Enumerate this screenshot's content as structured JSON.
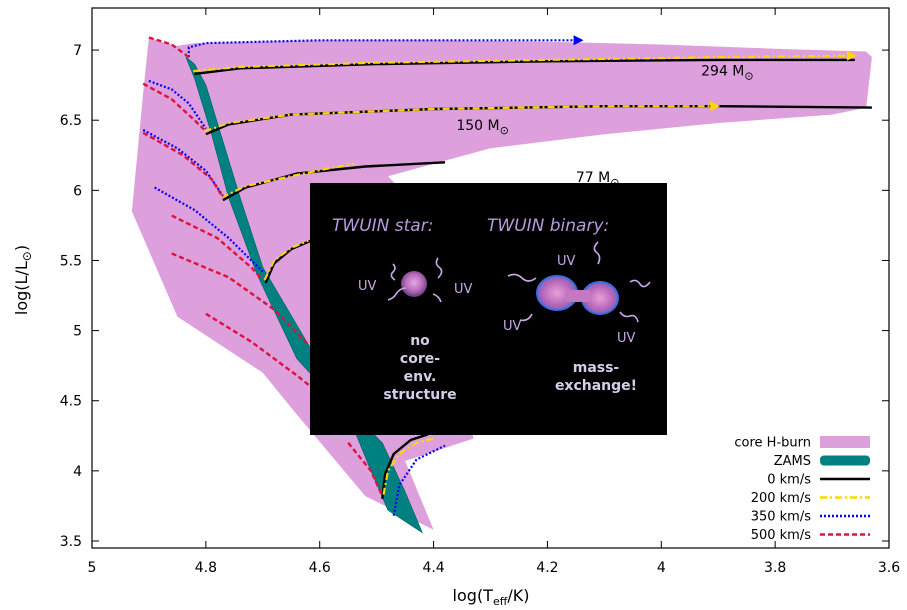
{
  "chart_data": {
    "type": "line",
    "xlabel": "log(T",
    "xlabel_sub": "eff",
    "xlabel_end": "/K)",
    "ylabel": "log(L/L",
    "ylabel_sym": "⊙",
    "ylabel_end": ")",
    "xlim": [
      5.0,
      3.6
    ],
    "ylim": [
      3.45,
      7.3
    ],
    "x_reversed": true,
    "xticks": [
      "5",
      "4.8",
      "4.6",
      "4.4",
      "4.2",
      "4",
      "3.8",
      "3.6"
    ],
    "yticks": [
      "3.5",
      "4",
      "4.5",
      "5",
      "5.5",
      "6",
      "6.5",
      "7"
    ],
    "grid": false,
    "legend_position": "bottom-right",
    "legend": [
      {
        "label": "core H-burn",
        "style": "fill",
        "color": "#dda0dd"
      },
      {
        "label": "ZAMS",
        "style": "band",
        "color": "#008080"
      },
      {
        "label": "0 km/s",
        "style": "solid",
        "color": "#000000"
      },
      {
        "label": "200 km/s",
        "style": "dashdot",
        "color": "#ffd700"
      },
      {
        "label": "350 km/s",
        "style": "dotted",
        "color": "#0000ff"
      },
      {
        "label": "500 km/s",
        "style": "dashed",
        "color": "#dc143c"
      }
    ],
    "mass_labels": [
      {
        "text": "294 M",
        "sym": "⊙",
        "x": 3.93,
        "y": 6.82
      },
      {
        "text": "150 M",
        "sym": "⊙",
        "x": 4.36,
        "y": 6.43
      },
      {
        "text": "77 M",
        "sym": "⊙",
        "x": 4.15,
        "y": 6.06
      }
    ],
    "core_h_burn_region": [
      [
        4.9,
        7.09
      ],
      [
        4.88,
        7.06
      ],
      [
        4.85,
        7.03
      ],
      [
        4.82,
        7.05
      ],
      [
        4.6,
        7.07
      ],
      [
        4.4,
        7.07
      ],
      [
        4.2,
        7.06
      ],
      [
        4.0,
        7.04
      ],
      [
        3.8,
        7.01
      ],
      [
        3.64,
        6.99
      ],
      [
        3.63,
        6.95
      ],
      [
        3.64,
        6.59
      ],
      [
        3.7,
        6.54
      ],
      [
        3.9,
        6.48
      ],
      [
        4.1,
        6.4
      ],
      [
        4.3,
        6.3
      ],
      [
        4.48,
        6.1
      ],
      [
        4.42,
        5.85
      ],
      [
        4.36,
        5.2
      ],
      [
        4.33,
        4.23
      ],
      [
        4.45,
        4.07
      ],
      [
        4.4,
        3.58
      ],
      [
        4.52,
        3.82
      ],
      [
        4.65,
        4.45
      ],
      [
        4.7,
        4.7
      ],
      [
        4.85,
        5.1
      ],
      [
        4.93,
        5.85
      ],
      [
        4.91,
        6.7
      ],
      [
        4.9,
        7.09
      ]
    ],
    "zams_band_left": [
      [
        4.835,
        6.95
      ],
      [
        4.82,
        6.8
      ],
      [
        4.79,
        6.4
      ],
      [
        4.76,
        5.95
      ],
      [
        4.71,
        5.4
      ],
      [
        4.64,
        4.8
      ],
      [
        4.55,
        4.4
      ],
      [
        4.51,
        4.0
      ],
      [
        4.48,
        3.72
      ]
    ],
    "zams_band_right": [
      [
        4.42,
        3.56
      ],
      [
        4.45,
        3.85
      ],
      [
        4.49,
        4.2
      ],
      [
        4.54,
        4.4
      ],
      [
        4.62,
        4.9
      ],
      [
        4.7,
        5.45
      ],
      [
        4.74,
        5.95
      ],
      [
        4.77,
        6.35
      ],
      [
        4.8,
        6.75
      ],
      [
        4.82,
        6.9
      ]
    ],
    "series": [
      {
        "name": "0 km/s",
        "color": "#000000",
        "dash": "",
        "width": 2.4,
        "tracks": [
          [
            [
              4.82,
              6.83
            ],
            [
              4.74,
              6.87
            ],
            [
              4.5,
              6.9
            ],
            [
              4.2,
              6.92
            ],
            [
              3.9,
              6.93
            ],
            [
              3.66,
              6.93
            ]
          ],
          [
            [
              4.8,
              6.4
            ],
            [
              4.76,
              6.47
            ],
            [
              4.65,
              6.54
            ],
            [
              4.4,
              6.58
            ],
            [
              4.1,
              6.6
            ],
            [
              3.9,
              6.6
            ],
            [
              3.63,
              6.59
            ]
          ],
          [
            [
              4.77,
              5.93
            ],
            [
              4.73,
              6.02
            ],
            [
              4.64,
              6.12
            ],
            [
              4.52,
              6.17
            ],
            [
              4.38,
              6.2
            ]
          ],
          [
            [
              4.695,
              5.34
            ],
            [
              4.68,
              5.48
            ],
            [
              4.65,
              5.58
            ],
            [
              4.61,
              5.65
            ]
          ],
          [
            [
              4.49,
              3.8
            ],
            [
              4.485,
              3.98
            ],
            [
              4.47,
              4.12
            ],
            [
              4.44,
              4.22
            ],
            [
              4.41,
              4.26
            ]
          ]
        ]
      },
      {
        "name": "200 km/s",
        "color": "#ffd700",
        "dash": "7,3,2,3",
        "width": 2.2,
        "tracks": [
          [
            [
              4.822,
              6.85
            ],
            [
              4.74,
              6.88
            ],
            [
              4.5,
              6.91
            ],
            [
              4.2,
              6.93
            ],
            [
              3.9,
              6.95
            ],
            [
              3.66,
              6.96
            ]
          ],
          [
            [
              4.802,
              6.42
            ],
            [
              4.76,
              6.48
            ],
            [
              4.65,
              6.54
            ],
            [
              4.4,
              6.58
            ],
            [
              4.1,
              6.6
            ],
            [
              3.9,
              6.6
            ]
          ],
          [
            [
              4.772,
              5.95
            ],
            [
              4.73,
              6.03
            ],
            [
              4.64,
              6.11
            ],
            [
              4.58,
              6.16
            ],
            [
              4.54,
              6.19
            ]
          ],
          [
            [
              4.697,
              5.36
            ],
            [
              4.68,
              5.5
            ],
            [
              4.65,
              5.59
            ],
            [
              4.62,
              5.64
            ]
          ],
          [
            [
              4.488,
              3.83
            ],
            [
              4.48,
              4.0
            ],
            [
              4.46,
              4.12
            ],
            [
              4.43,
              4.2
            ],
            [
              4.4,
              4.23
            ]
          ]
        ]
      },
      {
        "name": "350 km/s",
        "color": "#0000ff",
        "dash": "2,2",
        "width": 2.2,
        "tracks": [
          [
            [
              4.83,
              6.95
            ],
            [
              4.83,
              7.02
            ],
            [
              4.8,
              7.05
            ],
            [
              4.6,
              7.07
            ],
            [
              4.4,
              7.07
            ],
            [
              4.14,
              7.07
            ]
          ],
          [
            [
              4.9,
              6.78
            ],
            [
              4.86,
              6.72
            ],
            [
              4.83,
              6.62
            ],
            [
              4.8,
              6.44
            ]
          ],
          [
            [
              4.91,
              6.43
            ],
            [
              4.85,
              6.3
            ],
            [
              4.8,
              6.14
            ],
            [
              4.77,
              5.96
            ]
          ],
          [
            [
              4.89,
              6.02
            ],
            [
              4.82,
              5.86
            ],
            [
              4.76,
              5.66
            ],
            [
              4.7,
              5.42
            ]
          ],
          [
            [
              4.47,
              3.68
            ],
            [
              4.46,
              3.9
            ],
            [
              4.43,
              4.08
            ],
            [
              4.38,
              4.18
            ]
          ]
        ]
      },
      {
        "name": "500 km/s",
        "color": "#dc143c",
        "dash": "5,3",
        "width": 2.4,
        "tracks": [
          [
            [
              4.9,
              7.09
            ],
            [
              4.86,
              7.04
            ],
            [
              4.83,
              6.95
            ]
          ],
          [
            [
              4.91,
              6.76
            ],
            [
              4.86,
              6.65
            ],
            [
              4.82,
              6.5
            ],
            [
              4.8,
              6.42
            ]
          ],
          [
            [
              4.91,
              6.41
            ],
            [
              4.84,
              6.25
            ],
            [
              4.79,
              6.08
            ],
            [
              4.77,
              5.95
            ]
          ],
          [
            [
              4.86,
              5.82
            ],
            [
              4.78,
              5.66
            ],
            [
              4.72,
              5.45
            ],
            [
              4.7,
              5.36
            ]
          ],
          [
            [
              4.86,
              5.55
            ],
            [
              4.76,
              5.38
            ],
            [
              4.68,
              5.15
            ],
            [
              4.62,
              4.9
            ]
          ],
          [
            [
              4.8,
              5.12
            ],
            [
              4.72,
              4.92
            ],
            [
              4.64,
              4.68
            ],
            [
              4.6,
              4.55
            ]
          ],
          [
            [
              4.55,
              4.2
            ],
            [
              4.51,
              4.0
            ],
            [
              4.49,
              3.82
            ]
          ]
        ]
      }
    ],
    "arrow_heads": [
      {
        "x": 4.14,
        "y": 7.07,
        "color": "#0000ff"
      },
      {
        "x": 3.9,
        "y": 6.6,
        "color": "#ffd700"
      },
      {
        "x": 3.66,
        "y": 6.96,
        "color": "#ffd700"
      }
    ],
    "inset": {
      "star_title": "TWUIN  star:",
      "binary_title": "TWUIN binary:",
      "uv": "UV",
      "star_caption": [
        "no",
        "core-",
        "env.",
        "structure"
      ],
      "binary_caption": [
        "mass-",
        "exchange!"
      ]
    }
  }
}
